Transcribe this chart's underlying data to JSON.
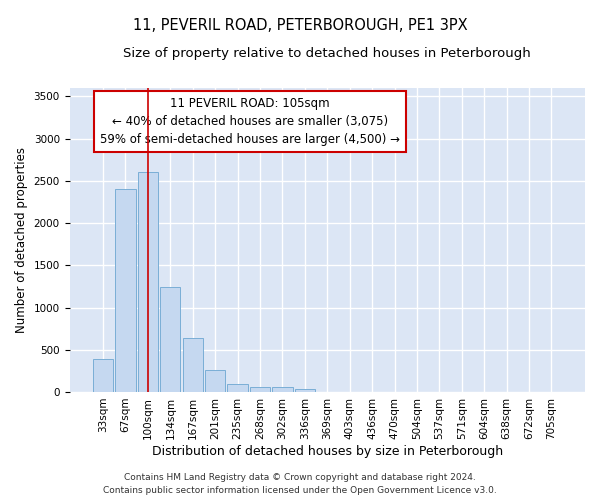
{
  "title": "11, PEVERIL ROAD, PETERBOROUGH, PE1 3PX",
  "subtitle": "Size of property relative to detached houses in Peterborough",
  "xlabel": "Distribution of detached houses by size in Peterborough",
  "ylabel": "Number of detached properties",
  "categories": [
    "33sqm",
    "67sqm",
    "100sqm",
    "134sqm",
    "167sqm",
    "201sqm",
    "235sqm",
    "268sqm",
    "302sqm",
    "336sqm",
    "369sqm",
    "403sqm",
    "436sqm",
    "470sqm",
    "504sqm",
    "537sqm",
    "571sqm",
    "604sqm",
    "638sqm",
    "672sqm",
    "705sqm"
  ],
  "values": [
    390,
    2400,
    2600,
    1240,
    640,
    255,
    95,
    60,
    55,
    40,
    0,
    0,
    0,
    0,
    0,
    0,
    0,
    0,
    0,
    0,
    0
  ],
  "bar_color": "#c5d8f0",
  "bar_edge_color": "#7aaed6",
  "highlight_index": 2,
  "highlight_line_color": "#cc0000",
  "annotation_line1": "11 PEVERIL ROAD: 105sqm",
  "annotation_line2": "← 40% of detached houses are smaller (3,075)",
  "annotation_line3": "59% of semi-detached houses are larger (4,500) →",
  "annotation_box_color": "#ffffff",
  "annotation_box_edge_color": "#cc0000",
  "ylim": [
    0,
    3600
  ],
  "yticks": [
    0,
    500,
    1000,
    1500,
    2000,
    2500,
    3000,
    3500
  ],
  "figure_background_color": "#ffffff",
  "plot_background_color": "#dce6f5",
  "grid_color": "#ffffff",
  "footer_line1": "Contains HM Land Registry data © Crown copyright and database right 2024.",
  "footer_line2": "Contains public sector information licensed under the Open Government Licence v3.0.",
  "title_fontsize": 10.5,
  "subtitle_fontsize": 9.5,
  "xlabel_fontsize": 9,
  "ylabel_fontsize": 8.5,
  "tick_fontsize": 7.5,
  "annotation_fontsize": 8.5,
  "footer_fontsize": 6.5
}
